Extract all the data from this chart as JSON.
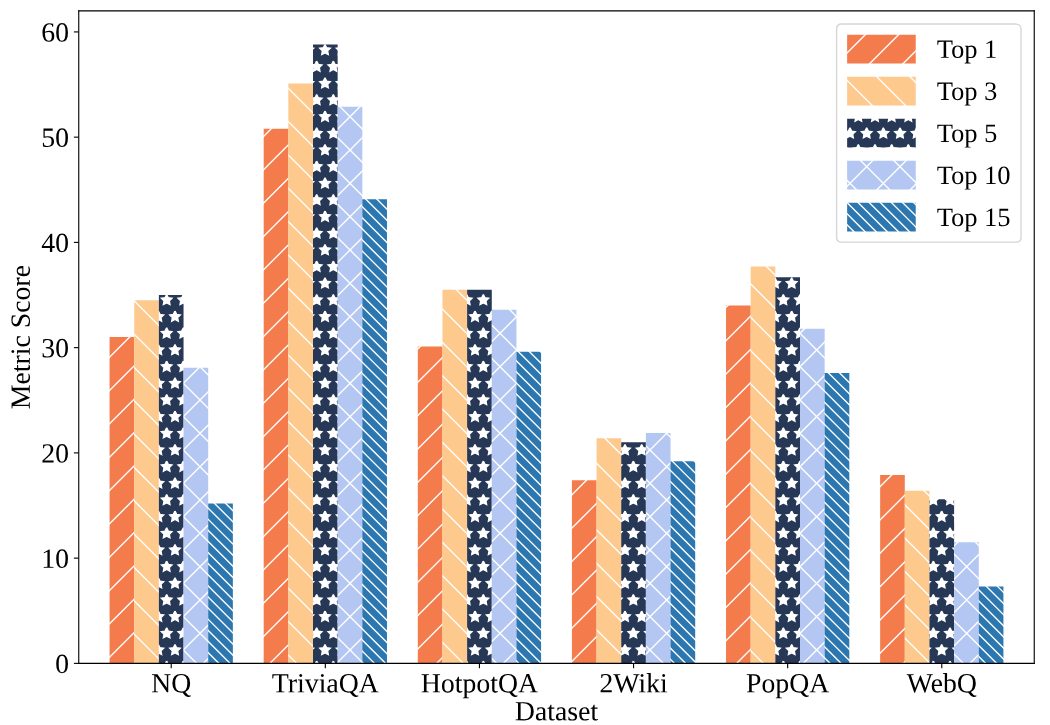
{
  "chart_data": {
    "type": "bar",
    "xlabel": "Dataset",
    "ylabel": "Metric Score",
    "categories": [
      "NQ",
      "TriviaQA",
      "HotpotQA",
      "2Wiki",
      "PopQA",
      "WebQ"
    ],
    "series": [
      {
        "name": "Top 1",
        "color": "#f47c4c",
        "values": [
          31.0,
          50.8,
          30.1,
          17.4,
          34.0,
          17.9
        ]
      },
      {
        "name": "Top 3",
        "color": "#fdc98c",
        "values": [
          34.5,
          55.1,
          35.5,
          21.4,
          37.7,
          16.4
        ]
      },
      {
        "name": "Top 5",
        "color": "#263856",
        "values": [
          35.0,
          58.8,
          35.5,
          21.0,
          36.7,
          15.6
        ]
      },
      {
        "name": "Top 10",
        "color": "#b3c7f2",
        "values": [
          28.1,
          52.9,
          33.6,
          21.9,
          31.8,
          11.5
        ]
      },
      {
        "name": "Top 15",
        "color": "#2c77b0",
        "values": [
          15.2,
          44.1,
          29.6,
          19.2,
          27.6,
          7.3
        ]
      }
    ],
    "ylim": [
      0,
      62
    ],
    "yticks": [
      0,
      10,
      20,
      30,
      40,
      50,
      60
    ],
    "grid": false,
    "legend": "top right"
  }
}
